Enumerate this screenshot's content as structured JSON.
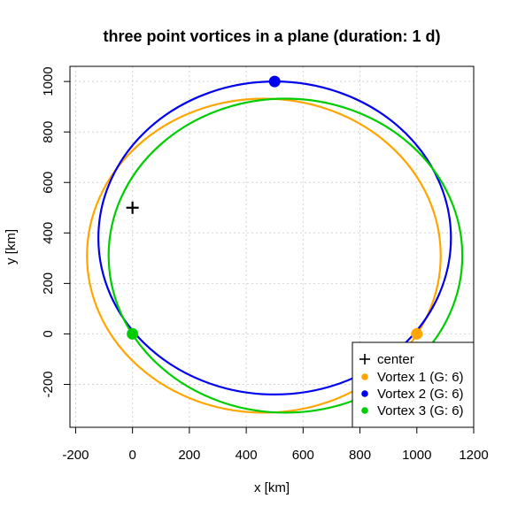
{
  "chart_data": {
    "type": "line",
    "title": "three point vortices in a plane (duration: 1 d)",
    "xlabel": "x [km]",
    "ylabel": "y [km]",
    "xlim": [
      -220,
      1200
    ],
    "ylim": [
      -370,
      1060
    ],
    "xticks": [
      -200,
      0,
      200,
      400,
      600,
      800,
      1000,
      1200
    ],
    "yticks": [
      -200,
      0,
      200,
      400,
      600,
      800,
      1000
    ],
    "grid": true,
    "legend_position": "bottom-right",
    "center": {
      "label": "center",
      "x": 0,
      "y": 500,
      "color": "#000000"
    },
    "series": [
      {
        "name": "Vortex 1 (G: 6)",
        "color": "#ffa500",
        "start": {
          "x": 1000,
          "y": 0
        },
        "orbit": {
          "cx": 462,
          "cy": 310,
          "rx": 622,
          "ry": 622
        }
      },
      {
        "name": "Vortex 2 (G: 6)",
        "color": "#0000ee",
        "start": {
          "x": 500,
          "y": 1000
        },
        "orbit": {
          "cx": 500,
          "cy": 380,
          "rx": 620,
          "ry": 620
        }
      },
      {
        "name": "Vortex 3 (G: 6)",
        "color": "#00cd00",
        "start": {
          "x": 0,
          "y": 0
        },
        "orbit": {
          "cx": 538,
          "cy": 310,
          "rx": 622,
          "ry": 622
        }
      }
    ]
  }
}
